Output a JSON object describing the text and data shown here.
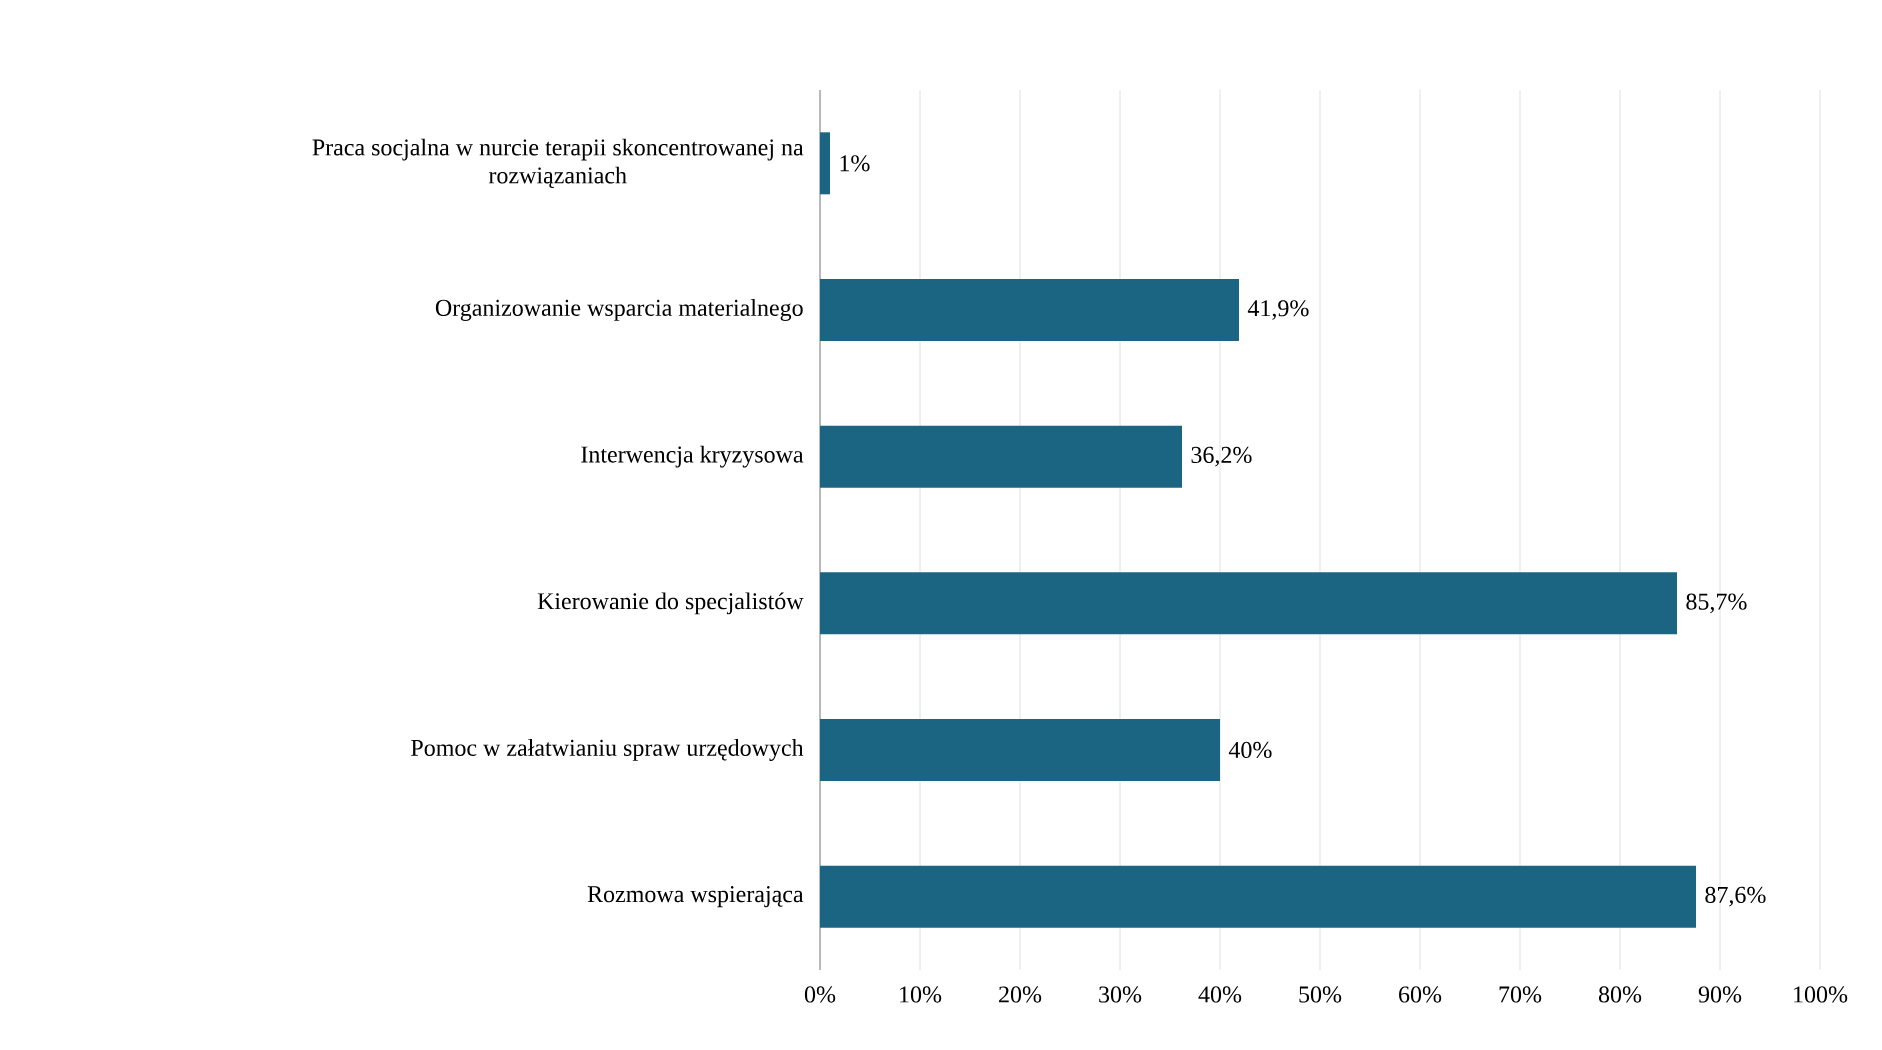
{
  "chart_data": {
    "type": "bar",
    "orientation": "horizontal",
    "categories": [
      "Praca socjalna w nurcie terapii skoncentrowanej na rozwiązaniach",
      "Organizowanie wsparcia materialnego",
      "Interwencja kryzysowa",
      "Kierowanie do specjalistów",
      "Pomoc w załatwianiu spraw urzędowych",
      "Rozmowa wspierająca"
    ],
    "values": [
      1,
      41.9,
      36.2,
      85.7,
      40,
      87.6
    ],
    "value_labels": [
      "1%",
      "41,9%",
      "36,2%",
      "85,7%",
      "40%",
      "87,6%"
    ],
    "color": "#1b6482",
    "xlim": [
      0,
      100
    ],
    "xticks": [
      {
        "value": 0,
        "label": "0%"
      },
      {
        "value": 10,
        "label": "10%"
      },
      {
        "value": 20,
        "label": "20%"
      },
      {
        "value": 30,
        "label": "30%"
      },
      {
        "value": 40,
        "label": "40%"
      },
      {
        "value": 50,
        "label": "50%"
      },
      {
        "value": 60,
        "label": "60%"
      },
      {
        "value": 70,
        "label": "70%"
      },
      {
        "value": 80,
        "label": "80%"
      },
      {
        "value": 90,
        "label": "90%"
      },
      {
        "value": 100,
        "label": "100%"
      }
    ],
    "grid": "x"
  }
}
